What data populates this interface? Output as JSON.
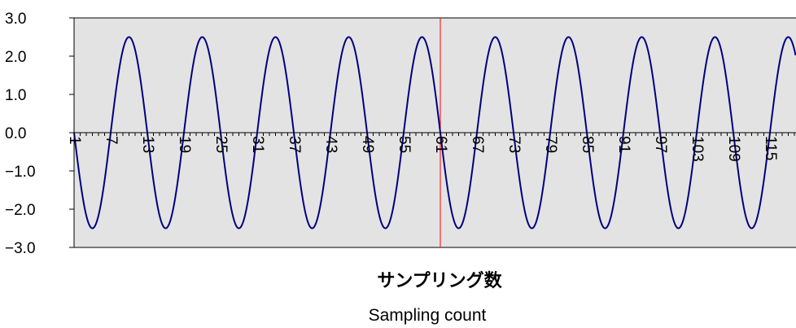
{
  "chart_data": {
    "type": "line",
    "xlabel": "サンプリング数",
    "xlabel_en": "Sampling count",
    "ylim": [
      -3.0,
      3.0
    ],
    "yticks": [
      "3.0",
      "2.0",
      "1.0",
      "0.0",
      "-1.0",
      "-2.0",
      "-3.0"
    ],
    "xlim": [
      1,
      120
    ],
    "xticks": [
      1,
      7,
      13,
      19,
      25,
      31,
      37,
      43,
      49,
      55,
      61,
      67,
      73,
      79,
      85,
      91,
      97,
      103,
      109,
      115
    ],
    "grid": false,
    "legend": "none",
    "marker_x": 61,
    "series": [
      {
        "color": "#000080",
        "amplitude": 2.5,
        "period_samples": 12,
        "phase": "starts at 0.0 at sample 1, falling",
        "x": [
          1,
          4,
          7,
          10,
          13,
          16,
          19,
          22,
          25,
          28,
          31,
          34,
          37,
          40,
          43,
          46,
          49,
          52,
          55,
          58,
          61,
          64,
          67,
          70,
          73,
          76,
          79,
          82,
          85,
          88,
          91,
          94,
          97,
          100,
          103,
          106,
          109,
          112,
          115,
          118
        ],
        "y": [
          0.0,
          -2.5,
          0.0,
          2.5,
          0.0,
          -2.5,
          0.0,
          2.5,
          0.0,
          -2.5,
          0.0,
          2.5,
          0.0,
          -2.5,
          0.0,
          2.5,
          0.0,
          -2.5,
          0.0,
          2.5,
          0.0,
          -2.5,
          0.0,
          2.5,
          0.0,
          -2.5,
          0.0,
          2.5,
          0.0,
          -2.5,
          0.0,
          2.5,
          0.0,
          -2.5,
          0.0,
          2.5,
          0.0,
          -2.5,
          0.0,
          2.5
        ]
      }
    ],
    "colors": {
      "plot_background": "#e3e3e3",
      "line": "#000080",
      "marker_line": "#ff0000",
      "axis": "#000000"
    }
  }
}
